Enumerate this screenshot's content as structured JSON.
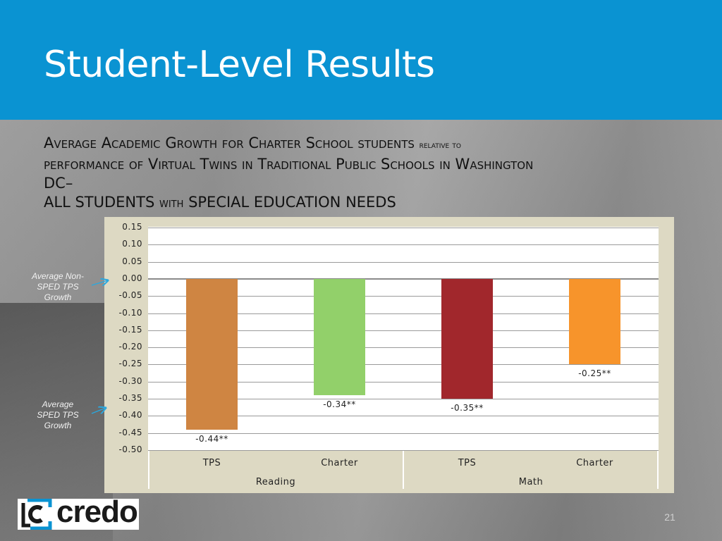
{
  "slide": {
    "title": "Student-Level Results",
    "subtitle_line1_a": "Average Academic Growth for Charter School students",
    "subtitle_line1_b": "relative to",
    "subtitle_line2": "performance of Virtual Twins in Traditional Public Schools in Washington",
    "subtitle_line3": "DC–",
    "subtitle_line4_a": "ALL STUDENTS",
    "subtitle_line4_b": "WITH",
    "subtitle_line4_c": "SPECIAL EDUCATION NEEDS",
    "page_number": "21"
  },
  "annotations": {
    "non_sped": "Average Non-SPED TPS Growth",
    "sped": "Average SPED TPS Growth"
  },
  "logo": {
    "text": "credo",
    "icon": "credo-bracket-c-icon",
    "colors": {
      "blue": "#0a93d2",
      "dark": "#1a1a1a"
    }
  },
  "colors": {
    "header": "#0a93d2",
    "chart_panel": "#ddd9c3",
    "arrow": "#29a8e0"
  },
  "chart_data": {
    "type": "bar",
    "groups": [
      {
        "name": "Reading",
        "categories": [
          "TPS",
          "Charter"
        ]
      },
      {
        "name": "Math",
        "categories": [
          "TPS",
          "Charter"
        ]
      }
    ],
    "bars": [
      {
        "group": "Reading",
        "category": "TPS",
        "value": -0.44,
        "label": "-0.44**",
        "color": "#cf8542"
      },
      {
        "group": "Reading",
        "category": "Charter",
        "value": -0.34,
        "label": "-0.34**",
        "color": "#92d06a"
      },
      {
        "group": "Math",
        "category": "TPS",
        "value": -0.35,
        "label": "-0.35**",
        "color": "#a1272c"
      },
      {
        "group": "Math",
        "category": "Charter",
        "value": -0.25,
        "label": "-0.25**",
        "color": "#f7942b"
      }
    ],
    "y_ticks": [
      "0.15",
      "0.10",
      "0.05",
      "0.00",
      "-0.05",
      "-0.10",
      "-0.15",
      "-0.20",
      "-0.25",
      "-0.30",
      "-0.35",
      "-0.40",
      "-0.45",
      "-0.50"
    ],
    "ylim": [
      -0.5,
      0.15
    ],
    "ytick_step": 0.05,
    "grid": true,
    "legend": "none"
  }
}
